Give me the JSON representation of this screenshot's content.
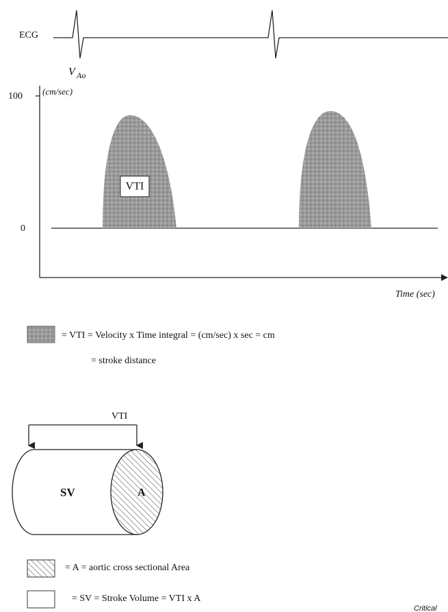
{
  "ecg_label": "ECG",
  "y_axis": {
    "symbol": "V",
    "subscript": "Ao",
    "unit": "(cm/sec)",
    "top_label": "100",
    "zero_label": "0"
  },
  "curve_label": "VTI",
  "x_axis_label": "Time (sec)",
  "legend_vti": {
    "line1": "= VTI = Velocity x Time integral = (cm/sec) x sec = cm",
    "line2": "= stroke distance"
  },
  "cylinder": {
    "length_label": "VTI",
    "body_label": "SV",
    "end_label": "A"
  },
  "legend_area": "= A = aortic cross sectional Area",
  "legend_sv": "= SV = Stroke Volume = VTI x A",
  "footer": "Critical"
}
